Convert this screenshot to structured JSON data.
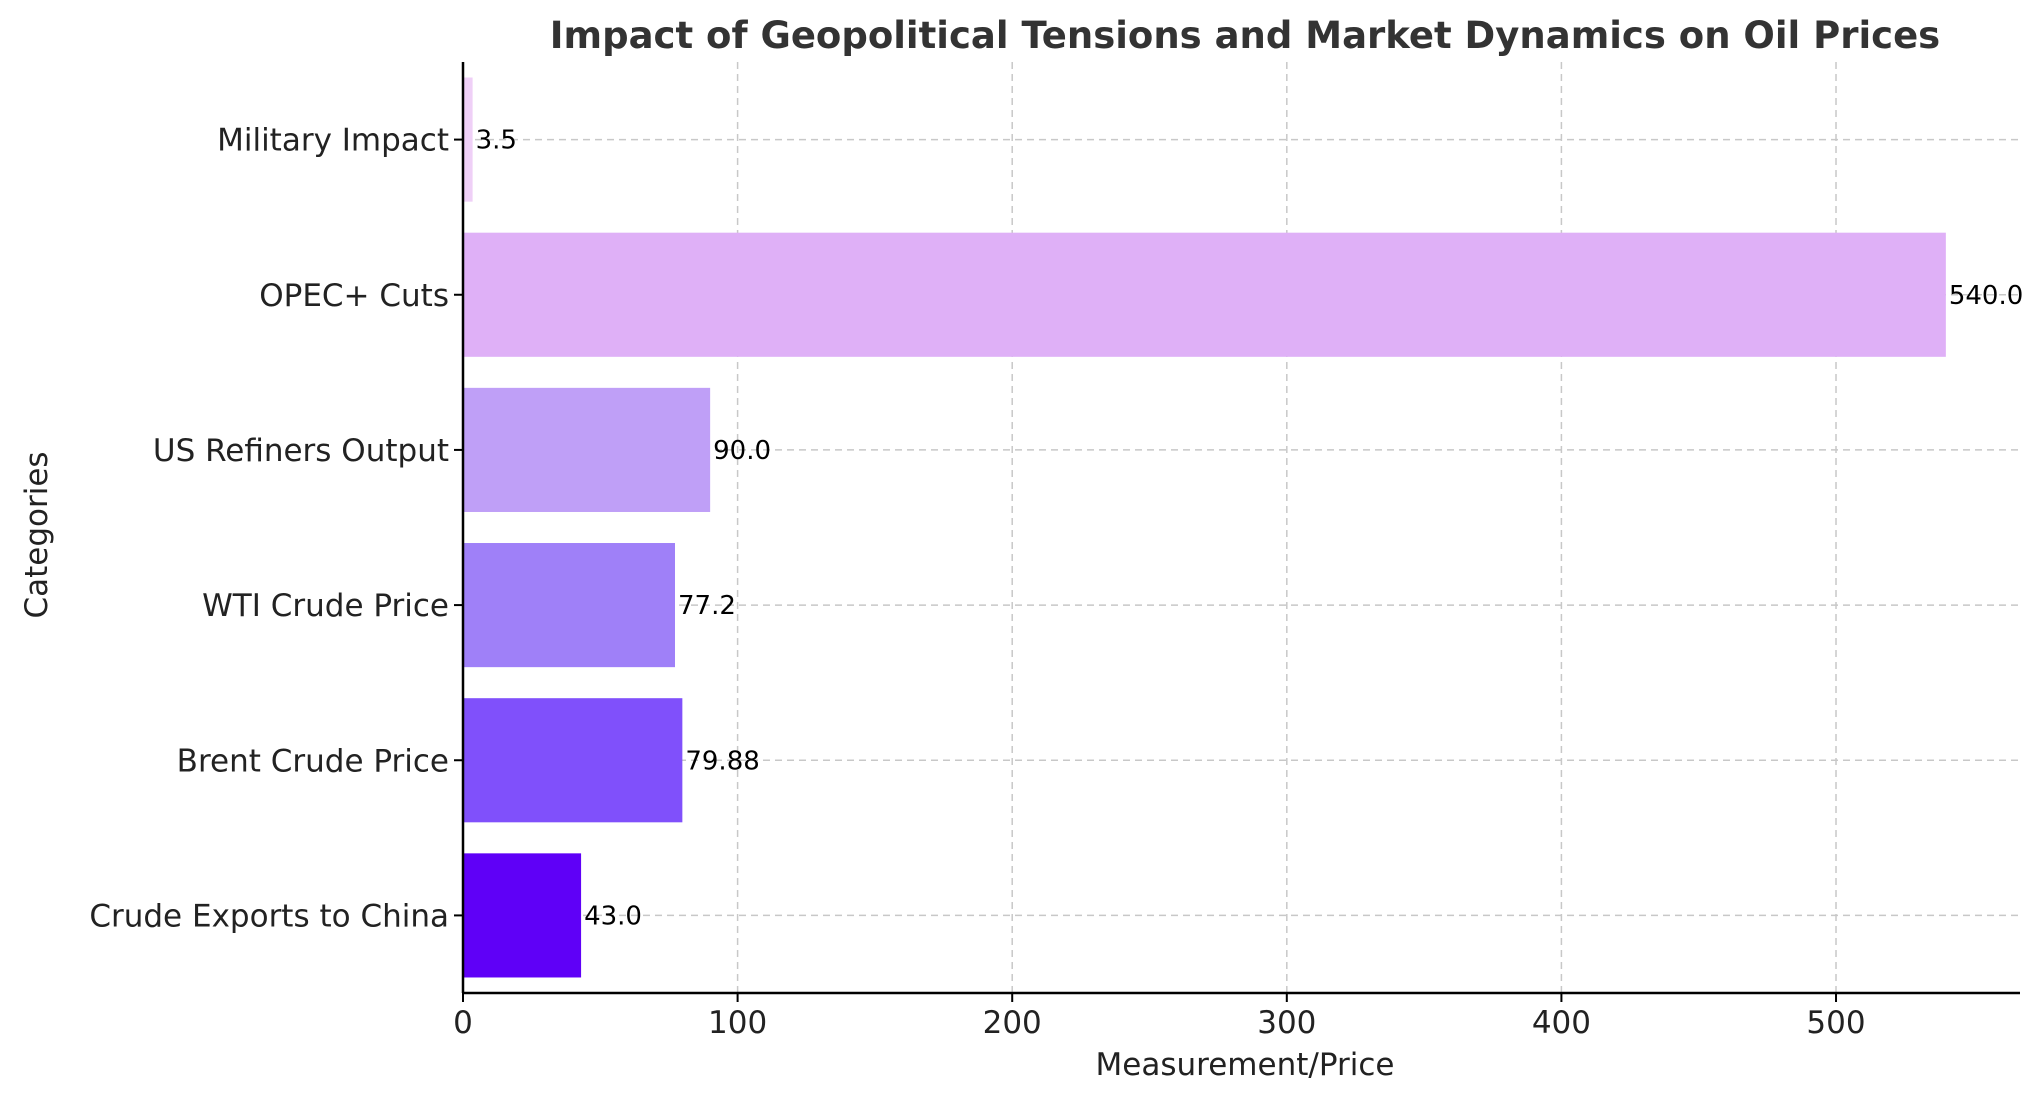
{
  "chart_data": {
    "type": "bar",
    "orientation": "horizontal",
    "title": "Impact of Geopolitical Tensions and Market Dynamics on Oil Prices",
    "xlabel": "Measurement/Price",
    "ylabel": "Categories",
    "xlim": [
      0,
      567
    ],
    "xticks": [
      0,
      100,
      200,
      300,
      400,
      500
    ],
    "grid": true,
    "categories": [
      "Crude Exports to China",
      "Brent Crude Price",
      "WTI Crude Price",
      "US Refiners Output",
      "OPEC+ Cuts",
      "Military Impact"
    ],
    "values": [
      43.0,
      79.88,
      77.2,
      90.0,
      540.0,
      3.5
    ],
    "value_labels": [
      "43.0",
      "79.88",
      "77.2",
      "90.0",
      "540.0",
      "3.5"
    ],
    "colors": [
      "#5f00f7",
      "#8050fb",
      "#9f80f8",
      "#bf9ff7",
      "#dfb0f7",
      "#efd0f7"
    ]
  }
}
